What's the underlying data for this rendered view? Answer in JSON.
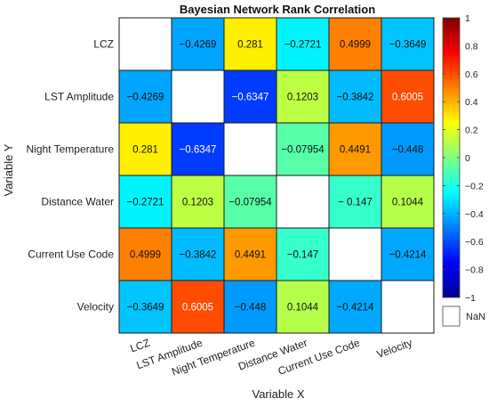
{
  "chart_data": {
    "type": "heatmap",
    "title": "Bayesian Network Rank Correlation",
    "xlabel": "Variable X",
    "ylabel": "Variable Y",
    "x_categories": [
      "LCZ",
      "LST Amplitude",
      "Night Temperature",
      "Distance Water",
      "Current Use Code",
      "Velocity"
    ],
    "y_categories": [
      "LCZ",
      "LST Amplitude",
      "Night Temperature",
      "Distance Water",
      "Current Use Code",
      "Velocity"
    ],
    "values": [
      [
        null,
        -0.4269,
        0.281,
        -0.2721,
        0.4999,
        -0.3649
      ],
      [
        -0.4269,
        null,
        -0.6347,
        0.1203,
        -0.3842,
        0.6005
      ],
      [
        0.281,
        -0.6347,
        null,
        -0.07954,
        0.4491,
        -0.448
      ],
      [
        -0.2721,
        0.1203,
        -0.07954,
        null,
        -0.147,
        0.1044
      ],
      [
        0.4999,
        -0.3842,
        0.4491,
        -0.147,
        null,
        -0.4214
      ],
      [
        -0.3649,
        0.6005,
        -0.448,
        0.1044,
        -0.4214,
        null
      ]
    ],
    "value_labels": [
      [
        "",
        "−0.4269",
        "0.281",
        "−0.2721",
        "0.4999",
        "−0.3649"
      ],
      [
        "−0.4269",
        "",
        "−0.6347",
        "0.1203",
        "−0.3842",
        "0.6005"
      ],
      [
        "0.281",
        "−0.6347",
        "",
        "−0.07954",
        "0.4491",
        "−0.448"
      ],
      [
        "−0.2721",
        "0.1203",
        "−0.07954",
        "",
        "− 0.147",
        "0.1044"
      ],
      [
        "0.4999",
        "−0.3842",
        "0.4491",
        "−0.147",
        "",
        "−0.4214"
      ],
      [
        "−0.3649",
        "0.6005",
        "−0.448",
        "0.1044",
        "−0.4214",
        ""
      ]
    ],
    "colorbar": {
      "colormap": "jet",
      "range": [
        -1,
        1
      ],
      "ticks": [
        1,
        0.8,
        0.6,
        0.4,
        0.2,
        0,
        -0.2,
        -0.4,
        -0.6,
        -0.8,
        -1
      ],
      "tick_labels": [
        "1",
        "0.8",
        "0.6",
        "0.4",
        "0.2",
        "0",
        "−0.2",
        "−0.4",
        "−0.6",
        "−0.8",
        "−1"
      ]
    },
    "nan_label": "NaN",
    "grid": true
  }
}
